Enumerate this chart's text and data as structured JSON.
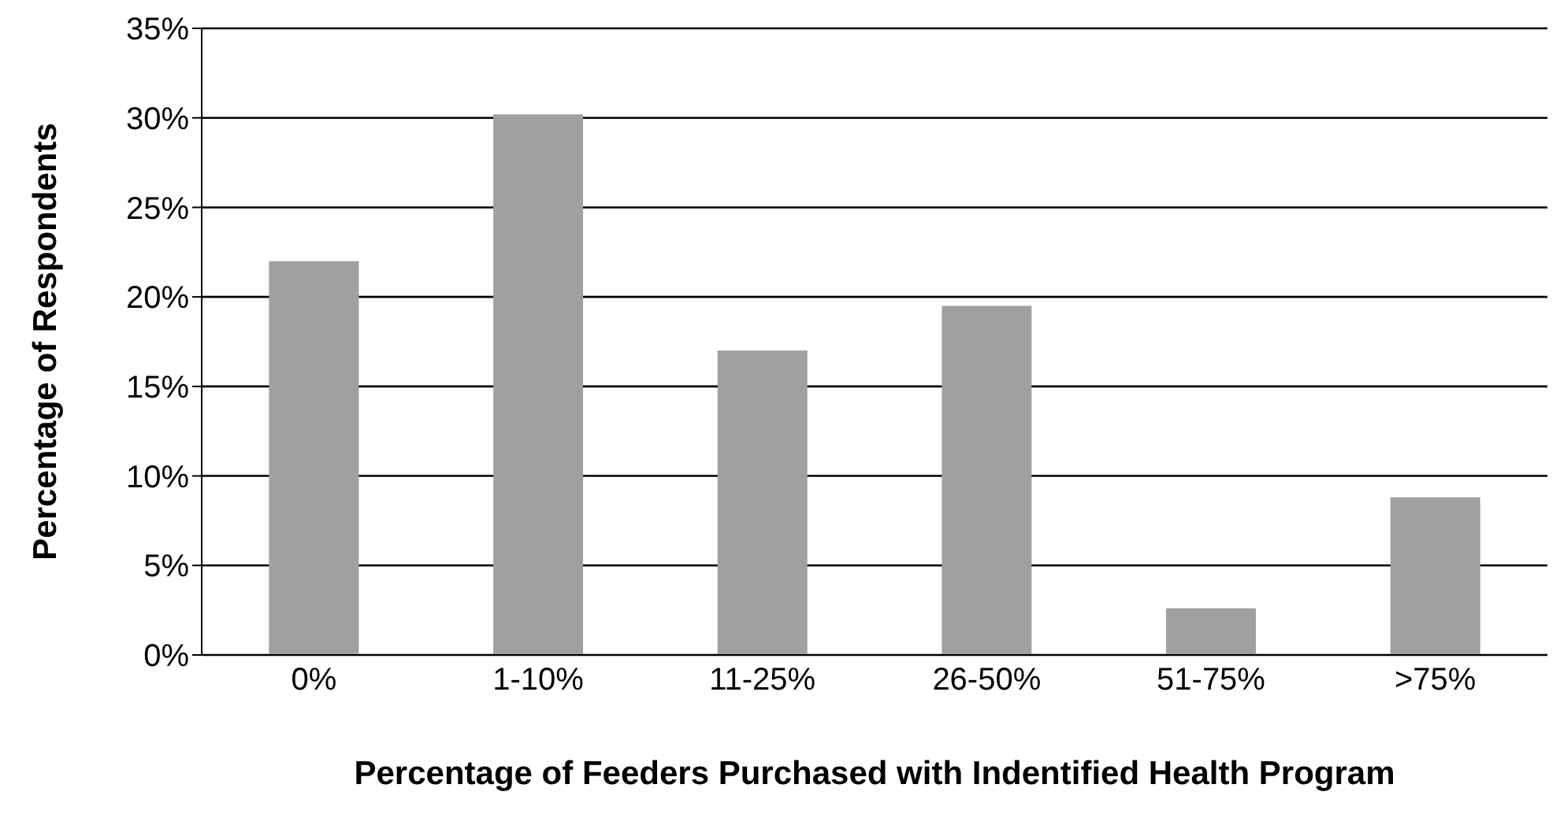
{
  "chart_data": {
    "type": "bar",
    "xlabel": "Percentage of Feeders Purchased with Indentified Health Program",
    "ylabel": "Percentage of Respondents",
    "categories": [
      "0%",
      "1-10%",
      "11-25%",
      "26-50%",
      "51-75%",
      ">75%"
    ],
    "values": [
      22,
      30.2,
      17,
      19.5,
      2.6,
      8.8
    ],
    "color": "#a0a0a3",
    "ylim": [
      0,
      35
    ],
    "yticks": [
      {
        "value": 0,
        "label": "0%"
      },
      {
        "value": 5,
        "label": "5%"
      },
      {
        "value": 10,
        "label": "10%"
      },
      {
        "value": 15,
        "label": "15%"
      },
      {
        "value": 20,
        "label": "20%"
      },
      {
        "value": 25,
        "label": "25%"
      },
      {
        "value": 30,
        "label": "30%"
      },
      {
        "value": 35,
        "label": "35%"
      }
    ],
    "grid": "y"
  }
}
